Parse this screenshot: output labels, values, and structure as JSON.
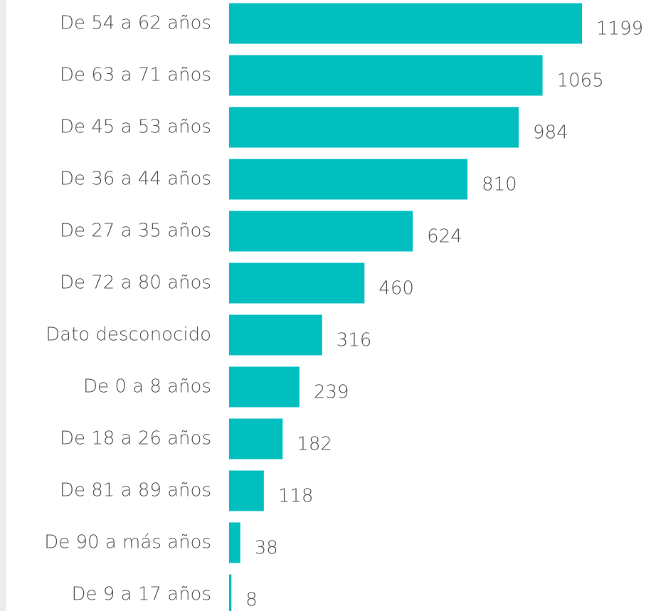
{
  "chart_data": {
    "type": "bar",
    "orientation": "horizontal",
    "color": "#01bfbf",
    "categories": [
      "De 54 a 62 años",
      "De 63 a 71 años",
      "De 45 a 53 años",
      "De 36 a 44 años",
      "De 27 a 35 años",
      "De 72 a 80 años",
      "Dato desconocido",
      "De 0 a 8 años",
      "De 18 a 26 años",
      "De 81 a 89 años",
      "De 90 a más años",
      "De 9 a 17 años"
    ],
    "values": [
      1199,
      1065,
      984,
      810,
      624,
      460,
      316,
      239,
      182,
      118,
      38,
      8
    ]
  }
}
